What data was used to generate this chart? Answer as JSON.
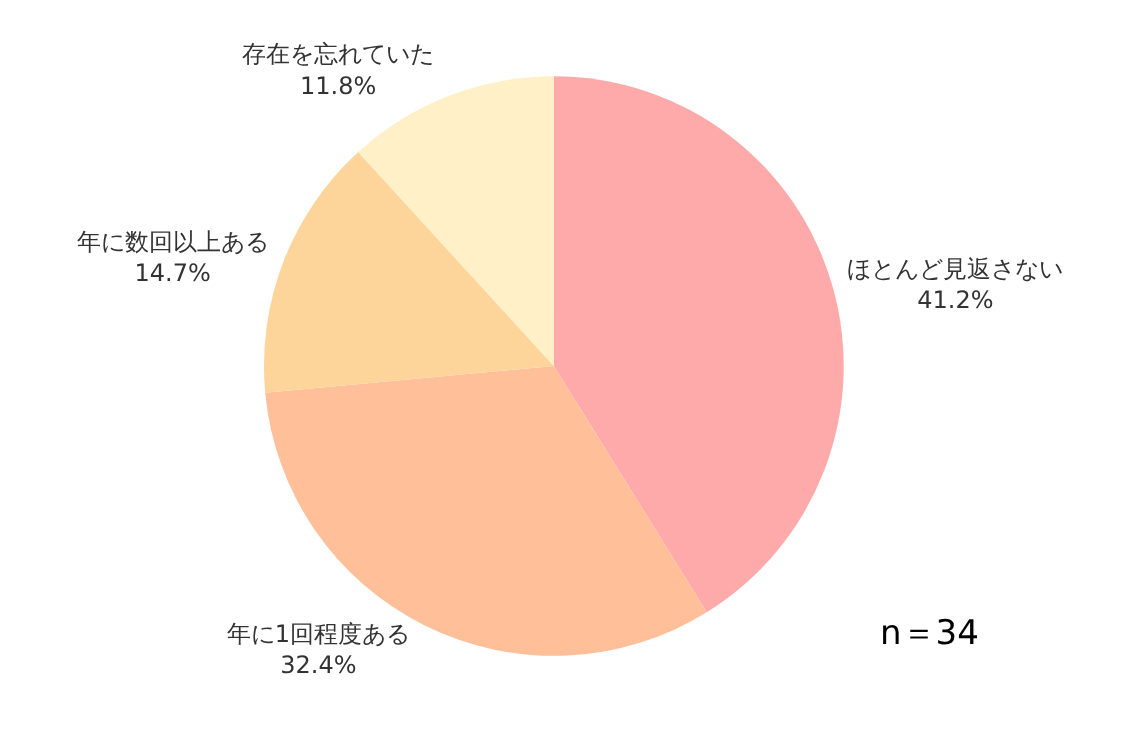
{
  "chart_data": {
    "type": "pie",
    "categories": [
      "ほとんど見返さない",
      "年に1回程度ある",
      "年に数回以上ある",
      "存在を忘れていた"
    ],
    "values": [
      41.2,
      32.4,
      14.7,
      11.8
    ],
    "value_labels": [
      "41.2%",
      "32.4%",
      "14.7%",
      "11.8%"
    ],
    "colors": [
      "#ffaaaa",
      "#ffbf99",
      "#fdd49a",
      "#fff0c8"
    ],
    "legend": false,
    "annotations": [
      "n＝34"
    ]
  }
}
